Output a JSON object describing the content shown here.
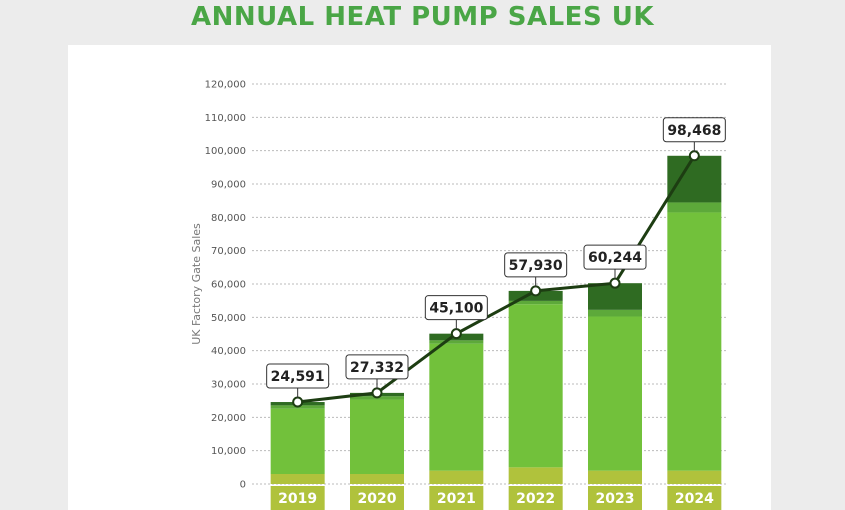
{
  "chart_data": {
    "type": "bar",
    "title": "ANNUAL HEAT PUMP SALES UK",
    "ylabel": "UK Factory Gate Sales",
    "xlabel": "",
    "ylim": [
      0,
      120000
    ],
    "yticks": [
      "0",
      "10,000",
      "20,000",
      "30,000",
      "40,000",
      "50,000",
      "60,000",
      "70,000",
      "80,000",
      "90,000",
      "100,000",
      "110,000",
      "120,000"
    ],
    "categories": [
      "2019",
      "2020",
      "2021",
      "2022",
      "2023",
      "2024"
    ],
    "values": [
      24591,
      27332,
      45100,
      57930,
      60244,
      98468
    ],
    "data_labels": [
      "24,591",
      "27,332",
      "45,100",
      "57,930",
      "60,244",
      "98,468"
    ],
    "segments": {
      "base": [
        3000,
        3000,
        4000,
        5000,
        4000,
        4000
      ],
      "middle": [
        19591,
        22332,
        38100,
        48930,
        46244,
        77468
      ],
      "light": [
        1000,
        1000,
        1000,
        1000,
        2000,
        3000
      ],
      "top": [
        1000,
        1000,
        2000,
        3000,
        8000,
        14000
      ]
    },
    "grid": true,
    "overlay_line": true,
    "colors": {
      "title": "#4aa646",
      "bar_main": "#72c13b",
      "bar_base": "#b0c23c",
      "bar_light": "#5da93a",
      "bar_top": "#2f6b22",
      "category_strip": "#b0c23c",
      "line": "#1d3d12",
      "grid": "#bbbbbb"
    }
  }
}
